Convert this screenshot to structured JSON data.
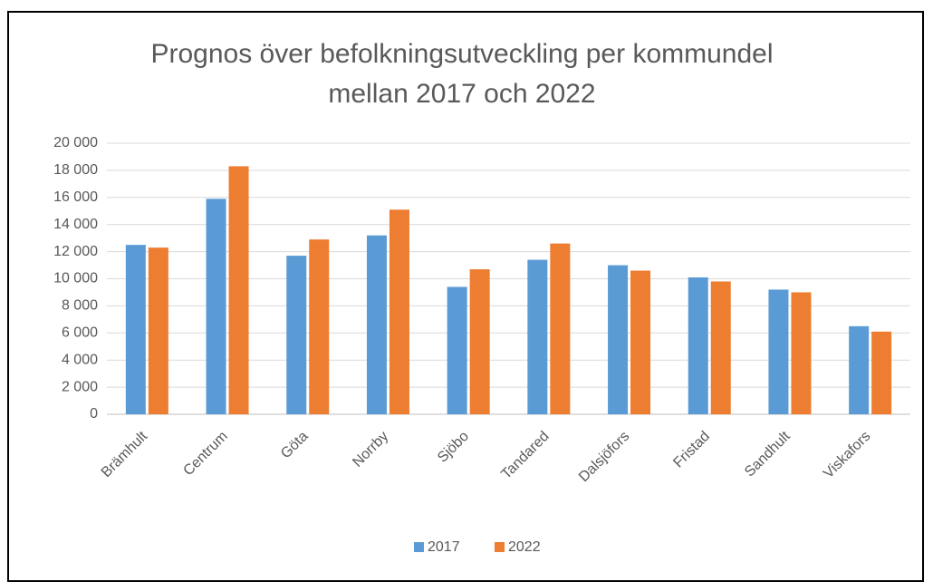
{
  "chart_data": {
    "type": "bar",
    "title": "Prognos över befolkningsutveckling per kommundel mellan 2017 och 2022",
    "categories": [
      "Brämhult",
      "Centrum",
      "Göta",
      "Norrby",
      "Sjöbo",
      "Tandared",
      "Dalsjöfors",
      "Fristad",
      "Sandhult",
      "Viskafors"
    ],
    "series": [
      {
        "name": "2017",
        "color": "#5b9bd5",
        "values": [
          12500,
          15900,
          11700,
          13200,
          9400,
          11400,
          11000,
          10100,
          9200,
          6500
        ]
      },
      {
        "name": "2022",
        "color": "#ed7d31",
        "values": [
          12300,
          18300,
          12900,
          15100,
          10700,
          12600,
          10600,
          9800,
          9000,
          6100
        ]
      }
    ],
    "ylim": [
      0,
      20000
    ],
    "yticks": [
      0,
      {
        "value": 2000,
        "label": "2 000"
      },
      {
        "value": 4000,
        "label": "4 000"
      },
      {
        "value": 6000,
        "label": "6 000"
      },
      {
        "value": 8000,
        "label": "8 000"
      },
      {
        "value": 10000,
        "label": "10 000"
      },
      {
        "value": 12000,
        "label": "12 000"
      },
      {
        "value": 14000,
        "label": "14 000"
      },
      {
        "value": 16000,
        "label": "16 000"
      },
      {
        "value": 18000,
        "label": "18 000"
      },
      {
        "value": 20000,
        "label": "20 000"
      }
    ],
    "grid": true,
    "legend": "bottom"
  }
}
